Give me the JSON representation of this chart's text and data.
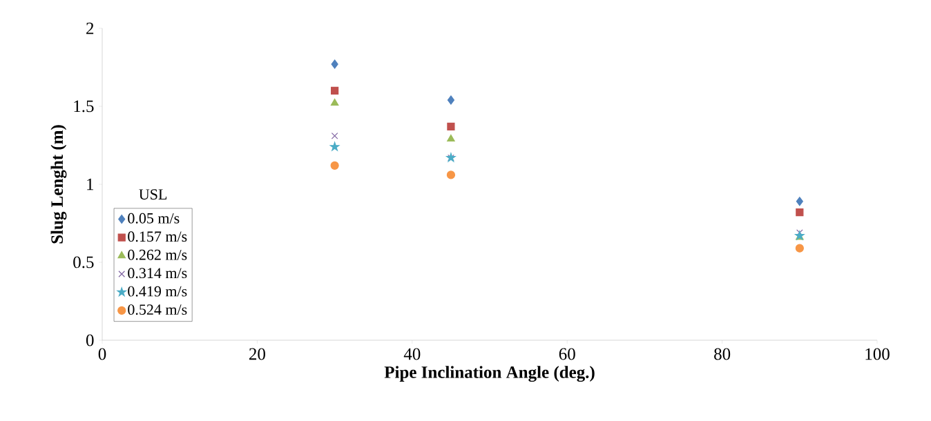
{
  "chart_data": {
    "type": "scatter",
    "xlabel": "Pipe Inclination Angle (deg.)",
    "ylabel": "Slug  Lenght (m)",
    "legend_title": "USL",
    "legend": "left",
    "xlim": [
      0,
      100
    ],
    "xticks": [
      0,
      20,
      40,
      60,
      80,
      100
    ],
    "ylim": [
      0,
      2
    ],
    "yticks": [
      0,
      0.5,
      1,
      1.5,
      2
    ],
    "grid": false,
    "x": [
      30,
      45,
      90
    ],
    "series": [
      {
        "name": "0.05 m/s",
        "color": "#4f81bd",
        "marker": "diamond",
        "values": [
          1.77,
          1.54,
          0.89
        ]
      },
      {
        "name": "0.157 m/s",
        "color": "#c0504d",
        "marker": "square",
        "values": [
          1.6,
          1.37,
          0.82
        ]
      },
      {
        "name": "0.262 m/s",
        "color": "#9bbb59",
        "marker": "triangle",
        "values": [
          1.52,
          1.29,
          0.66
        ]
      },
      {
        "name": "0.314 m/s",
        "color": "#8064a2",
        "marker": "cross",
        "values": [
          1.31,
          1.17,
          0.69
        ]
      },
      {
        "name": "0.419 m/s",
        "color": "#4bacc6",
        "marker": "star",
        "values": [
          1.24,
          1.17,
          0.67
        ]
      },
      {
        "name": "0.524 m/s",
        "color": "#f79646",
        "marker": "circle",
        "values": [
          1.12,
          1.06,
          0.59
        ]
      }
    ]
  }
}
